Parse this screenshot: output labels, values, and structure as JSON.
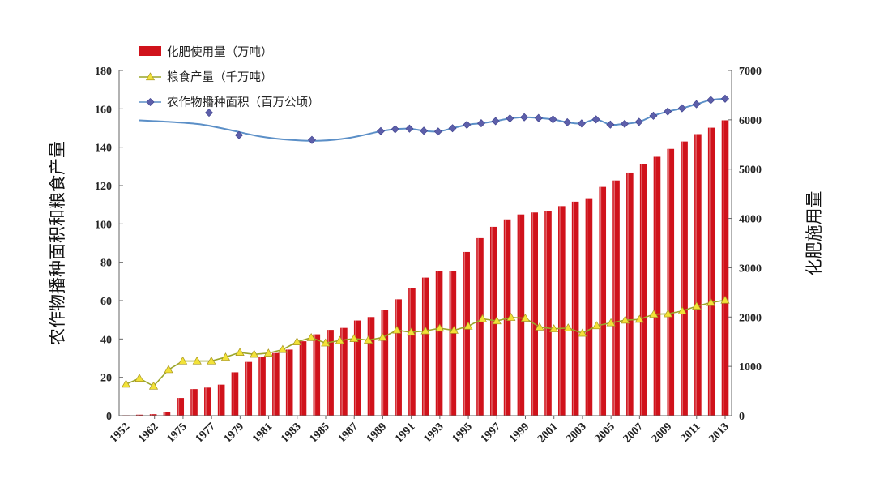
{
  "chart_data": {
    "type": "bar",
    "title": "",
    "xlabel": "",
    "ylabel_left": "农作物播种面积和粮食产量",
    "ylabel_right": "化肥施用量",
    "ylim_left": [
      0,
      180
    ],
    "ylim_right": [
      0,
      7000
    ],
    "yticks_left": [
      "0",
      "20",
      "40",
      "60",
      "80",
      "100",
      "120",
      "140",
      "160",
      "180"
    ],
    "yticks_right": [
      "0",
      "1000",
      "2000",
      "3000",
      "4000",
      "5000",
      "6000",
      "7000"
    ],
    "tick_labels": [
      "1952",
      "1962",
      "1975",
      "1977",
      "1979",
      "1981",
      "1983",
      "1985",
      "1987",
      "1989",
      "1991",
      "1993",
      "1995",
      "1997",
      "1999",
      "2001",
      "2003",
      "2005",
      "2007",
      "2009",
      "2011",
      "2013"
    ],
    "grid": false,
    "legend_position": "top-left",
    "series": [
      {
        "name": "化肥使用量（万吨）",
        "kind": "bar",
        "axis": "right",
        "color": "#d0121b",
        "values": [
          10,
          20,
          30,
          80,
          360,
          540,
          570,
          630,
          880,
          1090,
          1190,
          1270,
          1340,
          1510,
          1650,
          1740,
          1780,
          1930,
          2000,
          2140,
          2360,
          2590,
          2800,
          2930,
          2930,
          3320,
          3600,
          3830,
          3980,
          4080,
          4120,
          4150,
          4250,
          4340,
          4410,
          4640,
          4770,
          4930,
          5110,
          5250,
          5410,
          5560,
          5710,
          5840,
          5990
        ],
        "highlight_color": "#f0b0b2"
      },
      {
        "name": "粮食产量（千万吨）",
        "kind": "line",
        "axis": "left",
        "color": "#9aa528",
        "marker_color": "#f2e238",
        "values": [
          16.4,
          19.5,
          15.4,
          24,
          28.5,
          28.5,
          28.5,
          30.5,
          33,
          32,
          32.6,
          34.5,
          38.5,
          40.7,
          37.9,
          39.2,
          40.2,
          39.4,
          40.8,
          44.6,
          43.5,
          44.2,
          45.6,
          44.5,
          46.7,
          50.5,
          49.4,
          51.2,
          50.8,
          46.2,
          45.3,
          45.7,
          43,
          46.9,
          48.4,
          49.8,
          50.2,
          52.9,
          53.1,
          54.6,
          57.1,
          59,
          60.2
        ]
      },
      {
        "name": "农作物播种面积（百万公顷）",
        "kind": "line",
        "axis": "left",
        "color": "#5b8fc7",
        "marker_color": "#5d5faa",
        "marker_values": [
          158,
          146.3,
          143.8,
          148.4,
          149.4,
          149.7,
          148.6,
          148.2,
          149.9,
          151.7,
          152.5,
          153.6,
          155,
          155.6,
          155.2,
          154.5,
          153,
          152.4,
          154.5,
          151.8,
          152.2,
          153.2,
          156.4,
          158.6,
          160.3,
          162.4,
          164.6,
          165.3
        ],
        "curve_values": [
          154,
          153.2,
          152,
          149,
          145.6,
          143.8,
          143.4,
          145,
          148.4
        ]
      }
    ]
  }
}
